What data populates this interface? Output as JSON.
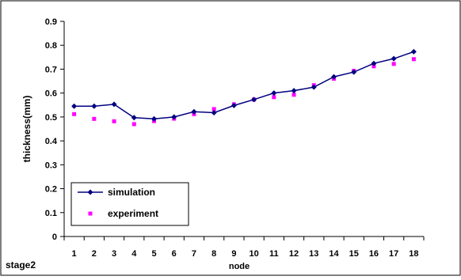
{
  "chart_data": {
    "type": "line",
    "xlabel": "node",
    "ylabel": "thickness(mm)",
    "footer_label": "stage2",
    "ylim": [
      0,
      0.9
    ],
    "yticks": [
      0,
      0.1,
      0.2,
      0.3,
      0.4,
      0.5,
      0.6,
      0.7,
      0.8,
      0.9
    ],
    "categories": [
      "1",
      "2",
      "3",
      "4",
      "5",
      "6",
      "7",
      "8",
      "9",
      "10",
      "11",
      "12",
      "13",
      "14",
      "15",
      "16",
      "17",
      "18"
    ],
    "grid": false,
    "legend_position": "bottom-left",
    "series": [
      {
        "name": "simulation",
        "style": "line-with-diamond-markers",
        "color": "#000080",
        "values": [
          0.545,
          0.545,
          0.553,
          0.497,
          0.492,
          0.5,
          0.522,
          0.518,
          0.548,
          0.573,
          0.6,
          0.61,
          0.625,
          0.668,
          0.688,
          0.724,
          0.744,
          0.773
        ]
      },
      {
        "name": "experiment",
        "style": "square-markers",
        "color": "#ff00ff",
        "values": [
          0.512,
          0.492,
          0.482,
          0.47,
          0.483,
          0.493,
          0.512,
          0.533,
          0.553,
          0.573,
          0.583,
          0.593,
          0.633,
          0.66,
          0.693,
          0.712,
          0.722,
          0.742
        ]
      }
    ]
  }
}
